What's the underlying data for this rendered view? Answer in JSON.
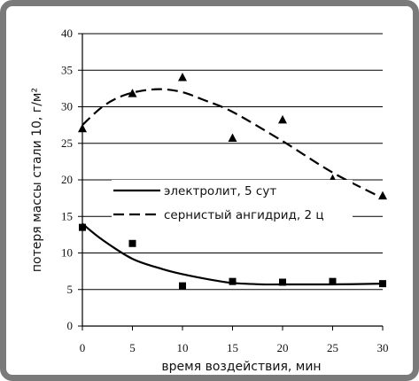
{
  "chart_data": {
    "type": "scatter",
    "xlabel": "время воздействия, мин",
    "ylabel": "потеря массы стали 10, г/м²",
    "xlim": [
      0,
      30
    ],
    "ylim": [
      0,
      40
    ],
    "x_ticks": [
      0,
      5,
      10,
      15,
      20,
      25,
      30
    ],
    "y_ticks": [
      0,
      5,
      10,
      15,
      20,
      25,
      30,
      35,
      40
    ],
    "grid": "horizontal",
    "legend_position": "center",
    "series": [
      {
        "name": "электролит, 5 сут",
        "marker": "square",
        "line_style": "solid",
        "x": [
          0,
          5,
          10,
          15,
          20,
          25,
          30
        ],
        "y": [
          13.5,
          11.3,
          5.5,
          6.1,
          6.0,
          6.1,
          5.8
        ],
        "trend": {
          "x": [
            0,
            2,
            5,
            8,
            10,
            13,
            15,
            18,
            20,
            25,
            30
          ],
          "y": [
            14,
            11.8,
            9.2,
            7.8,
            7.1,
            6.3,
            5.9,
            5.7,
            5.7,
            5.7,
            5.8
          ]
        }
      },
      {
        "name": "сернистый ангидрид, 2 ц",
        "marker": "triangle",
        "line_style": "dashed",
        "x": [
          0,
          5,
          10,
          15,
          20,
          25,
          30
        ],
        "y": [
          27,
          31.8,
          34,
          25.7,
          28.2,
          20.1,
          17.8
        ],
        "trend": {
          "x": [
            0,
            2,
            4,
            6,
            8,
            10,
            12,
            15,
            20,
            25,
            30
          ],
          "y": [
            27.5,
            30,
            31.5,
            32.2,
            32.4,
            32,
            31,
            29.3,
            25.3,
            21,
            17.5
          ]
        }
      }
    ]
  }
}
